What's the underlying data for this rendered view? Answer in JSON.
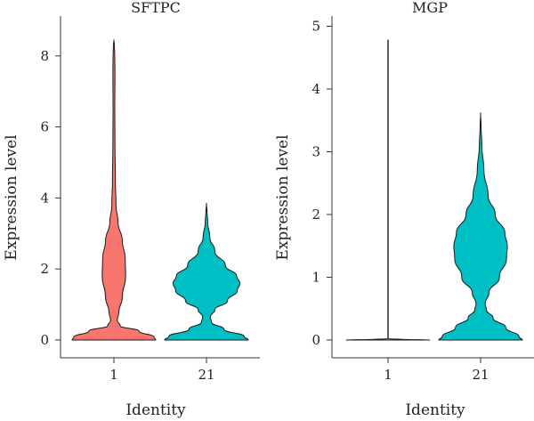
{
  "chart_data": [
    {
      "type": "violin",
      "title": "SFTPC",
      "xlabel": "Identity",
      "ylabel": "Expression level",
      "ylim": [
        0,
        8.6
      ],
      "yticks": [
        0,
        2,
        4,
        6,
        8
      ],
      "grid": false,
      "legend": "none",
      "categories": [
        "1",
        "21"
      ],
      "series": [
        {
          "category": "1",
          "color": "#F8766D",
          "max": 8.45,
          "profile": [
            [
              0,
              1
            ],
            [
              0.08,
              0.96
            ],
            [
              0.25,
              0.6
            ],
            [
              0.4,
              0.15
            ],
            [
              0.55,
              0.08
            ],
            [
              0.8,
              0.12
            ],
            [
              1.2,
              0.2
            ],
            [
              1.8,
              0.28
            ],
            [
              2.3,
              0.27
            ],
            [
              2.8,
              0.2
            ],
            [
              3.3,
              0.1
            ],
            [
              3.8,
              0.05
            ],
            [
              4.5,
              0.035
            ],
            [
              5.5,
              0.025
            ],
            [
              6.5,
              0.02
            ],
            [
              7.5,
              0.025
            ],
            [
              8,
              0.02
            ],
            [
              8.3,
              0.012
            ],
            [
              8.45,
              0
            ]
          ]
        },
        {
          "category": "21",
          "color": "#00BFC4",
          "max": 3.85,
          "profile": [
            [
              0,
              1
            ],
            [
              0.1,
              0.9
            ],
            [
              0.3,
              0.42
            ],
            [
              0.5,
              0.12
            ],
            [
              0.65,
              0.09
            ],
            [
              0.85,
              0.2
            ],
            [
              1.1,
              0.5
            ],
            [
              1.4,
              0.74
            ],
            [
              1.6,
              0.8
            ],
            [
              1.8,
              0.72
            ],
            [
              2.1,
              0.45
            ],
            [
              2.5,
              0.2
            ],
            [
              2.9,
              0.08
            ],
            [
              3.3,
              0.03
            ],
            [
              3.6,
              0.015
            ],
            [
              3.85,
              0
            ]
          ]
        }
      ]
    },
    {
      "type": "violin",
      "title": "MGP",
      "xlabel": "Identity",
      "ylabel": "Expression level",
      "ylim": [
        0,
        5
      ],
      "yticks": [
        0,
        1,
        2,
        3,
        4,
        5
      ],
      "grid": false,
      "legend": "none",
      "categories": [
        "1",
        "21"
      ],
      "series": [
        {
          "category": "1",
          "color": "#F8766D",
          "max": 4.78,
          "profile": [
            [
              0,
              1
            ],
            [
              0.01,
              0.4
            ],
            [
              0.02,
              0.004
            ],
            [
              4.78,
              0.004
            ]
          ]
        },
        {
          "category": "21",
          "color": "#00BFC4",
          "max": 3.62,
          "profile": [
            [
              0,
              1
            ],
            [
              0.05,
              0.92
            ],
            [
              0.2,
              0.6
            ],
            [
              0.35,
              0.3
            ],
            [
              0.48,
              0.14
            ],
            [
              0.58,
              0.11
            ],
            [
              0.75,
              0.2
            ],
            [
              1,
              0.45
            ],
            [
              1.3,
              0.62
            ],
            [
              1.5,
              0.64
            ],
            [
              1.7,
              0.58
            ],
            [
              2,
              0.35
            ],
            [
              2.3,
              0.18
            ],
            [
              2.7,
              0.08
            ],
            [
              3.1,
              0.03
            ],
            [
              3.4,
              0.012
            ],
            [
              3.62,
              0
            ]
          ]
        }
      ]
    }
  ]
}
